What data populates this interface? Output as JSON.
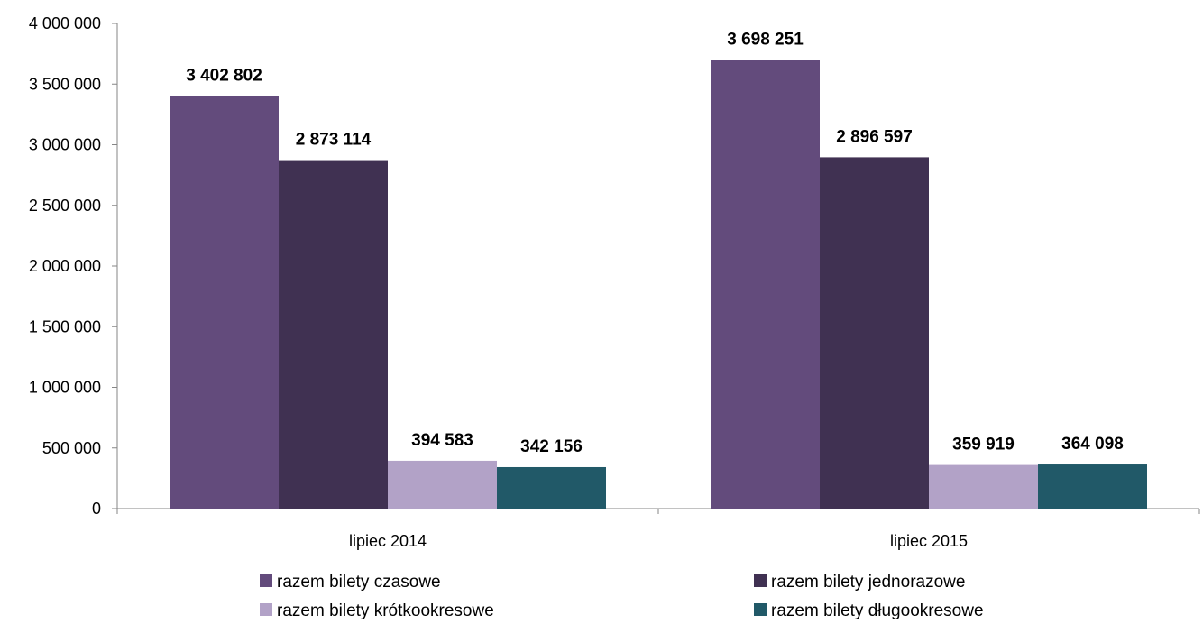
{
  "chart_data": {
    "type": "bar",
    "categories": [
      "lipiec 2014",
      "lipiec 2015"
    ],
    "series": [
      {
        "name": "razem bilety czasowe",
        "values": [
          3402802,
          3698251
        ],
        "labels": [
          "3 402 802",
          "3 698 251"
        ],
        "color": "#634b7c"
      },
      {
        "name": "razem bilety jednorazowe",
        "values": [
          2873114,
          2896597
        ],
        "labels": [
          "2 873 114",
          "2 896 597"
        ],
        "color": "#403152"
      },
      {
        "name": "razem bilety krótkookresowe",
        "values": [
          394583,
          359919
        ],
        "labels": [
          "394 583",
          "359 919"
        ],
        "color": "#b2a2c7"
      },
      {
        "name": "razem bilety długookresowe",
        "values": [
          342156,
          364098
        ],
        "labels": [
          "342 156",
          "364 098"
        ],
        "color": "#215968"
      }
    ],
    "ylim": [
      0,
      4000000
    ],
    "yticks": [
      0,
      500000,
      1000000,
      1500000,
      2000000,
      2500000,
      3000000,
      3500000,
      4000000
    ],
    "ytick_labels": [
      "0",
      "500 000",
      "1 000 000",
      "1 500 000",
      "2 000 000",
      "2 500 000",
      "3 000 000",
      "3 500 000",
      "4 000 000"
    ],
    "title": "",
    "xlabel": "",
    "ylabel": "",
    "grid": false,
    "legend_position": "bottom"
  }
}
